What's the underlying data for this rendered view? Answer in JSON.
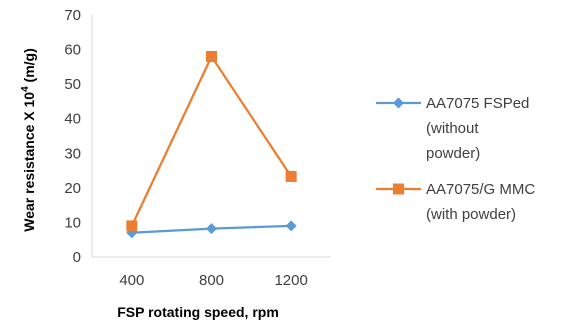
{
  "chart_data": {
    "type": "line",
    "title": "",
    "xlabel": "FSP rotating speed, rpm",
    "ylabel": {
      "pre": "Wear resistance X 10",
      "sup": "4",
      "post": " (m/g)"
    },
    "categories": [
      "400",
      "800",
      "1200"
    ],
    "ylim": [
      0,
      70
    ],
    "yticks": [
      0,
      10,
      20,
      30,
      40,
      50,
      60,
      70
    ],
    "grid": false,
    "legend_position": "right",
    "series": [
      {
        "name": "AA7075 FSPed (without powder)",
        "legend_lines": [
          "AA7075 FSPed",
          "(without",
          "powder)"
        ],
        "values": [
          7,
          8.2,
          9
        ],
        "color": "#5B9BD5",
        "marker": "diamond"
      },
      {
        "name": "AA7075/G MMC (with powder)",
        "legend_lines": [
          "AA7075/G MMC",
          "(with powder)"
        ],
        "values": [
          9,
          58,
          23.3
        ],
        "color": "#ED7D31",
        "marker": "square"
      }
    ]
  }
}
